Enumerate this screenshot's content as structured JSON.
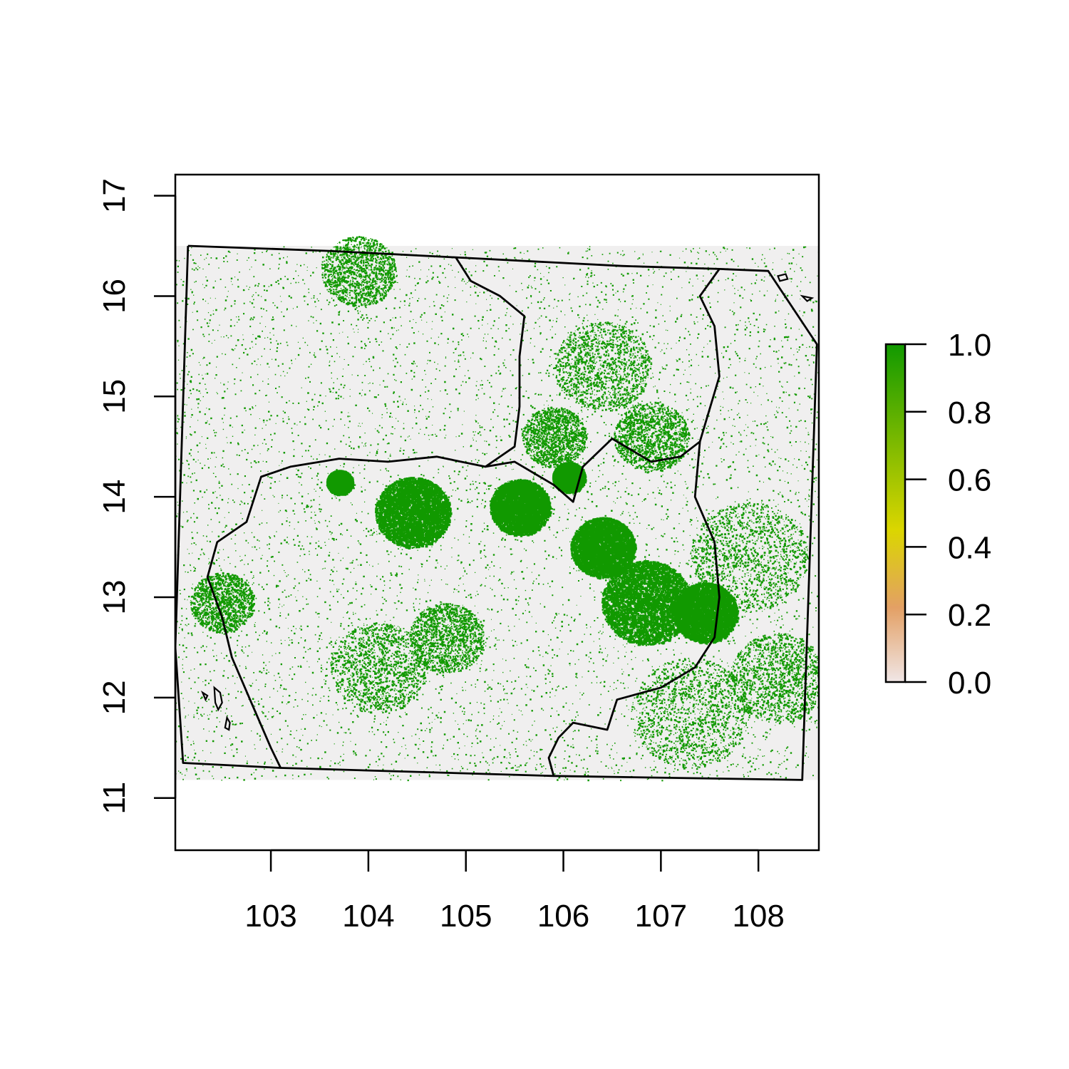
{
  "map": {
    "x_axis": {
      "range": [
        102.02,
        108.62
      ],
      "ticks": [
        {
          "value": 103,
          "label": "103"
        },
        {
          "value": 104,
          "label": "104"
        },
        {
          "value": 105,
          "label": "105"
        },
        {
          "value": 106,
          "label": "106"
        },
        {
          "value": 107,
          "label": "107"
        },
        {
          "value": 108,
          "label": "108"
        }
      ]
    },
    "y_axis": {
      "range": [
        10.48,
        17.21
      ],
      "ticks": [
        {
          "value": 11,
          "label": "11"
        },
        {
          "value": 12,
          "label": "12"
        },
        {
          "value": 13,
          "label": "13"
        },
        {
          "value": 14,
          "label": "14"
        },
        {
          "value": 15,
          "label": "15"
        },
        {
          "value": 16,
          "label": "16"
        },
        {
          "value": 17,
          "label": "17"
        }
      ]
    },
    "raster_extent": {
      "lon": [
        102.02,
        108.62
      ],
      "lat": [
        11.18,
        16.5
      ]
    },
    "colors": {
      "no_data_background": "#f0efef",
      "low": "#f0e6e6",
      "mid_low": "#e3a065",
      "mid": "#dbd600",
      "high": "#119900"
    },
    "legend": {
      "range": [
        0.0,
        1.0
      ],
      "ticks": [
        {
          "value": 0.0,
          "label": "0.0"
        },
        {
          "value": 0.2,
          "label": "0.2"
        },
        {
          "value": 0.4,
          "label": "0.4"
        },
        {
          "value": 0.6,
          "label": "0.6"
        },
        {
          "value": 0.8,
          "label": "0.8"
        },
        {
          "value": 1.0,
          "label": "1.0"
        }
      ]
    },
    "dense_forest_clusters": [
      {
        "lon": 106.85,
        "lat": 12.95,
        "r": 0.42
      },
      {
        "lon": 107.45,
        "lat": 12.85,
        "r": 0.3
      },
      {
        "lon": 104.45,
        "lat": 13.85,
        "r": 0.35
      },
      {
        "lon": 105.55,
        "lat": 13.9,
        "r": 0.28
      },
      {
        "lon": 106.4,
        "lat": 13.5,
        "r": 0.3
      },
      {
        "lon": 103.7,
        "lat": 14.15,
        "r": 0.12
      },
      {
        "lon": 106.05,
        "lat": 14.2,
        "r": 0.15
      }
    ],
    "medium_forest_clusters": [
      {
        "lon": 106.4,
        "lat": 15.3,
        "r": 0.45
      },
      {
        "lon": 107.3,
        "lat": 11.85,
        "r": 0.55
      },
      {
        "lon": 104.1,
        "lat": 12.3,
        "r": 0.45
      },
      {
        "lon": 102.5,
        "lat": 12.95,
        "r": 0.3
      },
      {
        "lon": 104.8,
        "lat": 12.6,
        "r": 0.35
      },
      {
        "lon": 107.9,
        "lat": 13.4,
        "r": 0.55
      },
      {
        "lon": 108.2,
        "lat": 12.2,
        "r": 0.45
      },
      {
        "lon": 103.9,
        "lat": 16.25,
        "r": 0.35
      },
      {
        "lon": 106.9,
        "lat": 14.6,
        "r": 0.35
      },
      {
        "lon": 105.9,
        "lat": 14.6,
        "r": 0.3
      }
    ],
    "country_borders": [
      [
        [
          102.15,
          16.5
        ],
        [
          103.6,
          16.45
        ],
        [
          105.0,
          16.38
        ],
        [
          106.6,
          16.3
        ],
        [
          107.6,
          16.27
        ],
        [
          108.1,
          16.25
        ],
        [
          108.6,
          15.52
        ],
        [
          108.45,
          11.18
        ],
        [
          105.9,
          11.22
        ],
        [
          103.1,
          11.3
        ],
        [
          102.1,
          11.35
        ],
        [
          102.02,
          12.5
        ],
        [
          102.15,
          16.5
        ]
      ],
      [
        [
          104.9,
          16.38
        ],
        [
          105.05,
          16.15
        ],
        [
          105.35,
          16.0
        ],
        [
          105.6,
          15.8
        ],
        [
          105.55,
          15.4
        ],
        [
          105.55,
          14.9
        ],
        [
          105.5,
          14.5
        ],
        [
          105.2,
          14.3
        ],
        [
          104.7,
          14.4
        ],
        [
          104.2,
          14.35
        ],
        [
          103.7,
          14.38
        ],
        [
          103.2,
          14.3
        ],
        [
          102.9,
          14.2
        ],
        [
          102.75,
          13.75
        ],
        [
          102.45,
          13.55
        ],
        [
          102.35,
          13.2
        ],
        [
          102.5,
          12.8
        ],
        [
          102.6,
          12.4
        ],
        [
          102.8,
          11.95
        ],
        [
          103.0,
          11.5
        ],
        [
          103.1,
          11.3
        ]
      ],
      [
        [
          105.2,
          14.3
        ],
        [
          105.5,
          14.35
        ],
        [
          105.9,
          14.12
        ],
        [
          106.1,
          13.95
        ],
        [
          106.2,
          14.3
        ],
        [
          106.5,
          14.58
        ],
        [
          106.9,
          14.35
        ],
        [
          107.2,
          14.4
        ],
        [
          107.4,
          14.55
        ],
        [
          107.6,
          15.2
        ],
        [
          107.55,
          15.7
        ],
        [
          107.4,
          16.0
        ],
        [
          107.6,
          16.27
        ]
      ],
      [
        [
          107.4,
          14.55
        ],
        [
          107.35,
          14.0
        ],
        [
          107.55,
          13.55
        ],
        [
          107.6,
          13.0
        ],
        [
          107.55,
          12.6
        ],
        [
          107.35,
          12.3
        ],
        [
          107.0,
          12.1
        ],
        [
          106.55,
          11.98
        ],
        [
          106.45,
          11.68
        ],
        [
          106.1,
          11.75
        ],
        [
          105.95,
          11.6
        ],
        [
          105.85,
          11.4
        ],
        [
          105.9,
          11.22
        ]
      ]
    ],
    "islands": [
      [
        [
          102.42,
          12.1
        ],
        [
          102.48,
          12.05
        ],
        [
          102.5,
          11.95
        ],
        [
          102.46,
          11.88
        ],
        [
          102.43,
          11.95
        ],
        [
          102.42,
          12.1
        ]
      ],
      [
        [
          102.55,
          11.8
        ],
        [
          102.58,
          11.75
        ],
        [
          102.57,
          11.68
        ],
        [
          102.53,
          11.7
        ],
        [
          102.55,
          11.8
        ]
      ],
      [
        [
          102.3,
          12.05
        ],
        [
          102.35,
          12.02
        ],
        [
          102.33,
          11.98
        ],
        [
          102.3,
          12.05
        ]
      ],
      [
        [
          108.2,
          16.2
        ],
        [
          108.28,
          16.22
        ],
        [
          108.3,
          16.17
        ],
        [
          108.22,
          16.15
        ],
        [
          108.2,
          16.2
        ]
      ],
      [
        [
          108.45,
          16.0
        ],
        [
          108.55,
          15.98
        ],
        [
          108.5,
          15.95
        ],
        [
          108.45,
          16.0
        ]
      ]
    ]
  }
}
